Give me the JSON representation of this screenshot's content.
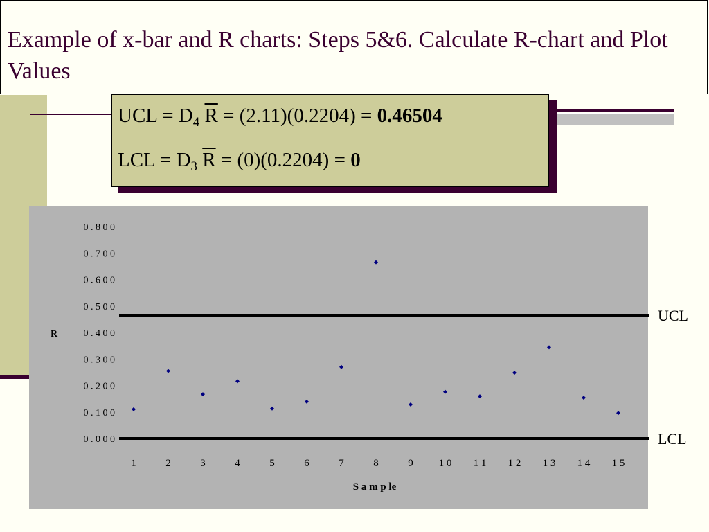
{
  "title": "Example of x-bar and R charts: Steps 5&6. Calculate R-chart and Plot Values",
  "formulas": {
    "ucl": {
      "label": "UCL",
      "coef": "D",
      "coef_sub": "4",
      "rbar": "R",
      "expr": "= (2.11)(0.2204) =",
      "result": "0.46504"
    },
    "lcl": {
      "label": "LCL",
      "coef": "D",
      "coef_sub": "3",
      "rbar": "R",
      "expr": "= (0)(0.2204) =",
      "result": "0"
    }
  },
  "colors": {
    "title_text": "#3a0030",
    "accent_band": "#cdcd9a",
    "plot_bg": "#b3b3b3",
    "marker": "#000080"
  },
  "chart_data": {
    "type": "scatter",
    "x": [
      1,
      2,
      3,
      4,
      5,
      6,
      7,
      8,
      9,
      10,
      11,
      12,
      13,
      14,
      15
    ],
    "tick_labels": [
      "1",
      "2",
      "3",
      "4",
      "5",
      "6",
      "7",
      "8",
      "9",
      "1 0",
      "1 1",
      "1 2",
      "1 3",
      "1 4",
      "1 5"
    ],
    "values": [
      0.11,
      0.255,
      0.167,
      0.216,
      0.113,
      0.139,
      0.27,
      0.665,
      0.128,
      0.176,
      0.159,
      0.248,
      0.344,
      0.154,
      0.096
    ],
    "y_ticks": [
      0.0,
      0.1,
      0.2,
      0.3,
      0.4,
      0.5,
      0.6,
      0.7,
      0.8
    ],
    "y_tick_labels": [
      "0 . 0 0 0",
      "0 . 1 0 0",
      "0 . 2 0 0",
      "0 . 3 0 0",
      "0 . 4 0 0",
      "0 . 5 0 0",
      "0 . 6 0 0",
      "0 . 7 0 0",
      "0 . 8 0 0"
    ],
    "ylim": [
      0,
      0.8
    ],
    "xlabel": "S a m p le",
    "ylabel": "R",
    "grid": false,
    "control_lines": [
      {
        "name": "UCL",
        "value": 0.46504
      },
      {
        "name": "LCL",
        "value": 0
      }
    ]
  }
}
